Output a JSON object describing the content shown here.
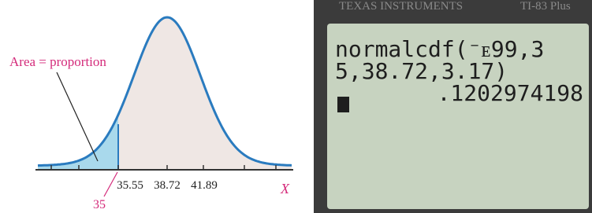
{
  "figure": {
    "annotation": "Area = proportion",
    "cutoff_label": "35",
    "tick_labels": [
      "35.55",
      "38.72",
      "41.89"
    ],
    "axis_label": "X"
  },
  "calculator": {
    "brand": "TEXAS INSTRUMENTS",
    "model": "TI-83 Plus",
    "screen_lines": [
      "normalcdf(⁻ᴇ99,3",
      "5,38.72,3.17)"
    ],
    "result": ".1202974198"
  }
}
